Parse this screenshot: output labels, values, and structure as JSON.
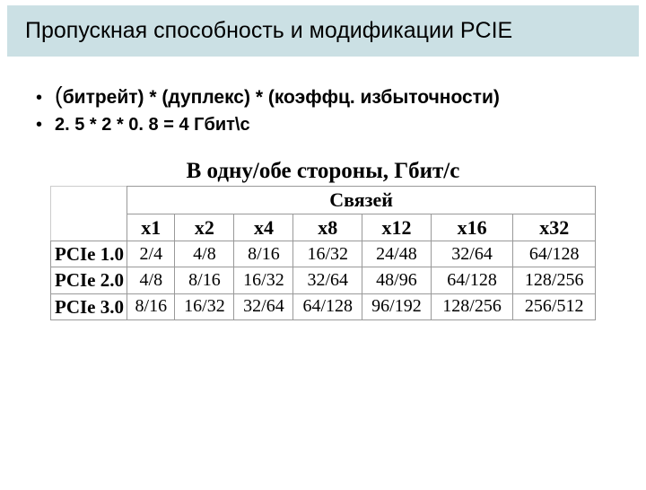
{
  "title": "Пропускная способность и модификации PCIE",
  "bullets": {
    "b1_open": "(",
    "b1_rest": "битрейт) * (дуплекс) * (коэффц. избыточности)",
    "b2": "2. 5 * 2 * 0. 8 = 4 Гбит\\с"
  },
  "table": {
    "heading": "В одну/обе стороны, Гбит/с",
    "subheading": "Связей",
    "columns": [
      "x1",
      "x2",
      "x4",
      "x8",
      "x12",
      "x16",
      "x32"
    ],
    "rows": [
      {
        "label": "PCIe 1.0",
        "cells": [
          "2/4",
          "4/8",
          "8/16",
          "16/32",
          "24/48",
          "32/64",
          "64/128"
        ]
      },
      {
        "label": "PCIe 2.0",
        "cells": [
          "4/8",
          "8/16",
          "16/32",
          "32/64",
          "48/96",
          "64/128",
          "128/256"
        ]
      },
      {
        "label": "PCIe 3.0",
        "cells": [
          "8/16",
          "16/32",
          "32/64",
          "64/128",
          "96/192",
          "128/256",
          "256/512"
        ]
      }
    ]
  },
  "style": {
    "title_bg": "#cbe0e4",
    "border_color": "#999999",
    "font_serif": "Times New Roman",
    "font_sans": "Arial"
  }
}
